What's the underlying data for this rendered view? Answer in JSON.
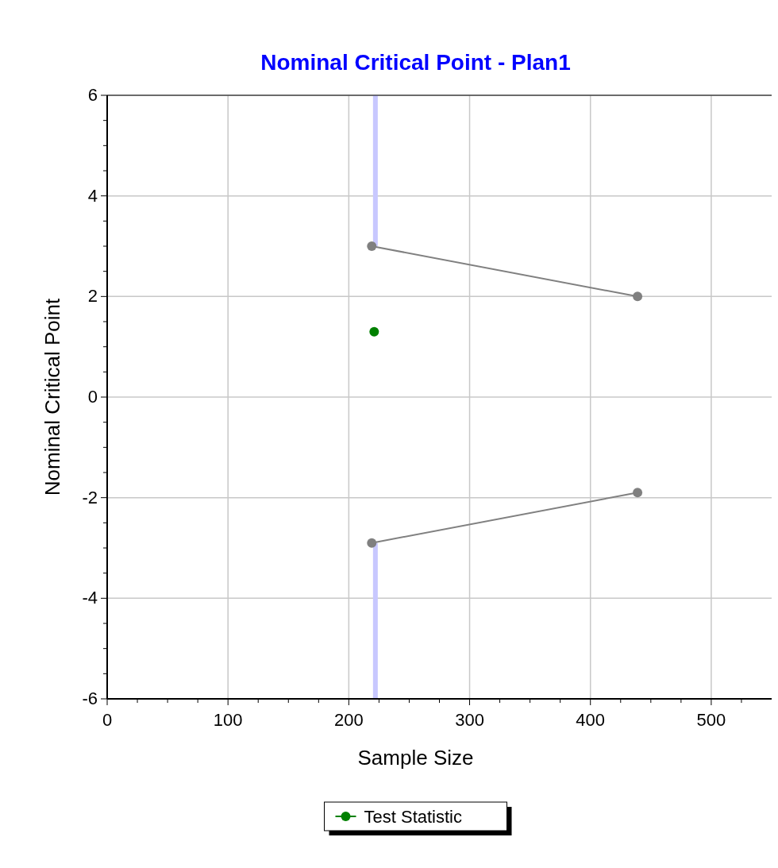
{
  "chart_data": {
    "type": "line",
    "title": "Nominal Critical Point - Plan1",
    "xlabel": "Sample Size",
    "ylabel": "Nominal Critical Point",
    "xlim": [
      0,
      550
    ],
    "ylim": [
      -6,
      6
    ],
    "xticks": [
      0,
      {
        "value": 25,
        "label": null
      },
      {
        "value": 50,
        "label": null
      },
      {
        "value": 75,
        "label": null
      },
      100,
      {
        "value": 125,
        "label": null
      },
      {
        "value": 150,
        "label": null
      },
      {
        "value": 175,
        "label": null
      },
      200,
      {
        "value": 225,
        "label": null
      },
      {
        "value": 250,
        "label": null
      },
      {
        "value": 275,
        "label": null
      },
      300,
      {
        "value": 325,
        "label": null
      },
      {
        "value": 350,
        "label": null
      },
      {
        "value": 375,
        "label": null
      },
      400,
      {
        "value": 425,
        "label": null
      },
      {
        "value": 450,
        "label": null
      },
      {
        "value": 475,
        "label": null
      },
      500,
      {
        "value": 525,
        "label": null
      }
    ],
    "yticks": [
      -6,
      {
        "value": -5.5,
        "label": null
      },
      {
        "value": -5,
        "label": null
      },
      {
        "value": -4.5,
        "label": null
      },
      -4,
      {
        "value": -3.5,
        "label": null
      },
      {
        "value": -3,
        "label": null
      },
      {
        "value": -2.5,
        "label": null
      },
      -2,
      {
        "value": -1.5,
        "label": null
      },
      {
        "value": -1,
        "label": null
      },
      {
        "value": -0.5,
        "label": null
      },
      0,
      {
        "value": 0.5,
        "label": null
      },
      {
        "value": 1,
        "label": null
      },
      {
        "value": 1.5,
        "label": null
      },
      2,
      {
        "value": 2.5,
        "label": null
      },
      {
        "value": 3,
        "label": null
      },
      {
        "value": 3.5,
        "label": null
      },
      4,
      {
        "value": 4.5,
        "label": null
      },
      {
        "value": 5,
        "label": null
      },
      {
        "value": 5.5,
        "label": null
      },
      6
    ],
    "grid": true,
    "legend": "bottom",
    "marker": "circle",
    "series": [
      {
        "color": "#c8c8ff",
        "marker": "none",
        "x": [
          222,
          222
        ],
        "values": [
          6,
          3.0
        ]
      },
      {
        "color": "#c8c8ff",
        "marker": "none",
        "x": [
          222,
          222
        ],
        "values": [
          -2.9,
          -6
        ]
      },
      {
        "color": "#808080",
        "x": [
          219,
          439
        ],
        "values": [
          3.0,
          2.0
        ]
      },
      {
        "color": "#808080",
        "x": [
          219,
          439
        ],
        "values": [
          -2.9,
          -1.9
        ]
      },
      {
        "type": "scatter",
        "name": "Test Statistic",
        "color": "#008000",
        "x": [
          221
        ],
        "values": [
          1.3
        ]
      }
    ]
  }
}
